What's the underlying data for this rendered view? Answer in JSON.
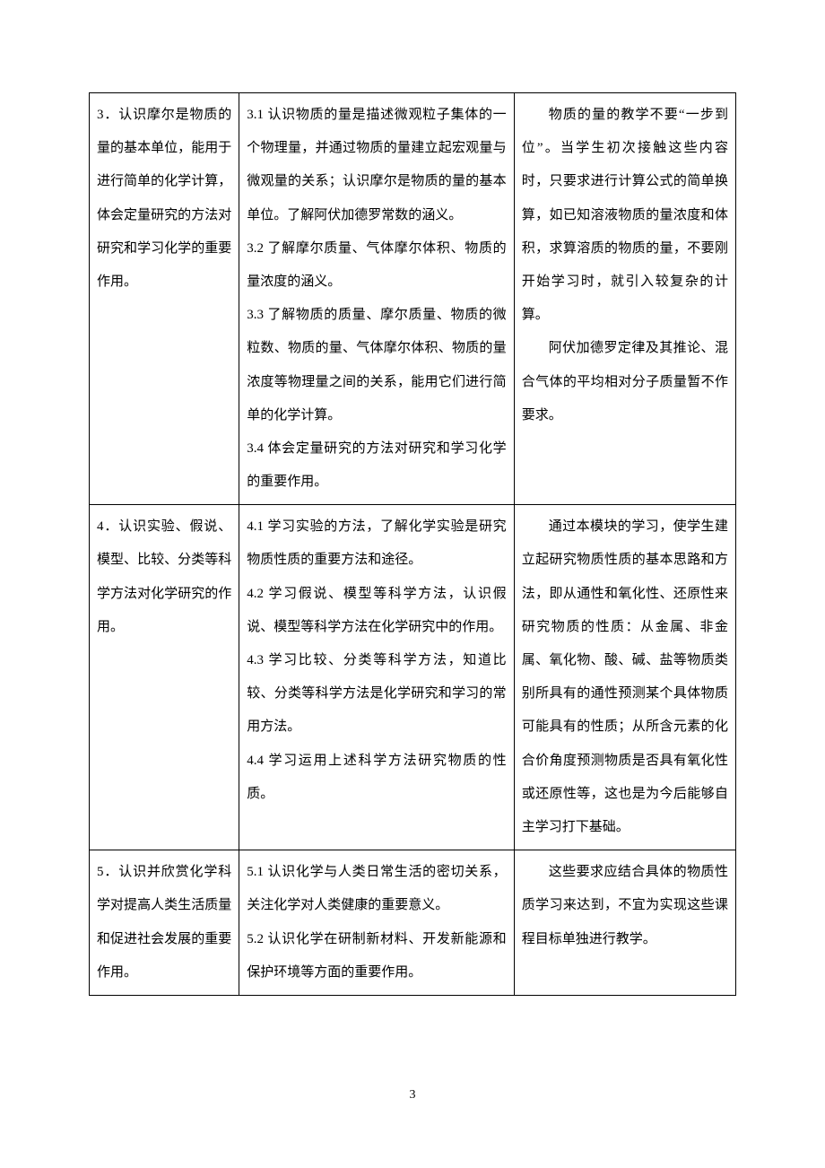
{
  "table": {
    "border_color": "#000000",
    "background_color": "#ffffff",
    "text_color": "#000000",
    "font_size": 15,
    "line_height": 2.48,
    "columns": [
      "col1",
      "col2",
      "col3"
    ],
    "column_widths": [
      "23.2%",
      "42.5%",
      "34.3%"
    ],
    "rows": [
      {
        "col1": "3．认识摩尔是物质的量的基本单位，能用于进行简单的化学计算，体会定量研究的方法对研究和学习化学的重要作用。",
        "col2_p1": "3.1 认识物质的量是描述微观粒子集体的一个物理量，并通过物质的量建立起宏观量与微观量的关系；认识摩尔是物质的量的基本单位。了解阿伏加德罗常数的涵义。",
        "col2_p2": "3.2 了解摩尔质量、气体摩尔体积、物质的量浓度的涵义。",
        "col2_p3": "3.3 了解物质的质量、摩尔质量、物质的微粒数、物质的量、气体摩尔体积、物质的量浓度等物理量之间的关系，能用它们进行简单的化学计算。",
        "col2_p4": "3.4 体会定量研究的方法对研究和学习化学的重要作用。",
        "col3_p1": "物质的量的教学不要“一步到位”。当学生初次接触这些内容时，只要求进行计算公式的简单换算，如已知溶液物质的量浓度和体积，求算溶质的物质的量，不要刚开始学习时，就引入较复杂的计算。",
        "col3_p2": "阿伏加德罗定律及其推论、混合气体的平均相对分子质量暂不作要求。"
      },
      {
        "col1": "4．认识实验、假说、模型、比较、分类等科学方法对化学研究的作用。",
        "col2_p1": "4.1 学习实验的方法，了解化学实验是研究物质性质的重要方法和途径。",
        "col2_p2": "4.2 学习假说、模型等科学方法，认识假说、模型等科学方法在化学研究中的作用。",
        "col2_p3": "4.3 学习比较、分类等科学方法，知道比较、分类等科学方法是化学研究和学习的常用方法。",
        "col2_p4": "4.4 学习运用上述科学方法研究物质的性质。",
        "col3_p1": "通过本模块的学习，使学生建立起研究物质性质的基本思路和方法，即从通性和氧化性、还原性来研究物质的性质：从金属、非金属、氧化物、酸、碱、盐等物质类别所具有的通性预测某个具体物质可能具有的性质；从所含元素的化合价角度预测物质是否具有氧化性或还原性等，这也是为今后能够自主学习打下基础。"
      },
      {
        "col1": "5．认识并欣赏化学科学对提高人类生活质量和促进社会发展的重要作用。",
        "col2_p1": "5.1 认识化学与人类日常生活的密切关系，关注化学对人类健康的重要意义。",
        "col2_p2": "5.2 认识化学在研制新材料、开发新能源和保护环境等方面的重要作用。",
        "col3_p1": "这些要求应结合具体的物质性质学习来达到，不宜为实现这些课程目标单独进行教学。"
      }
    ]
  },
  "page_number": "3"
}
